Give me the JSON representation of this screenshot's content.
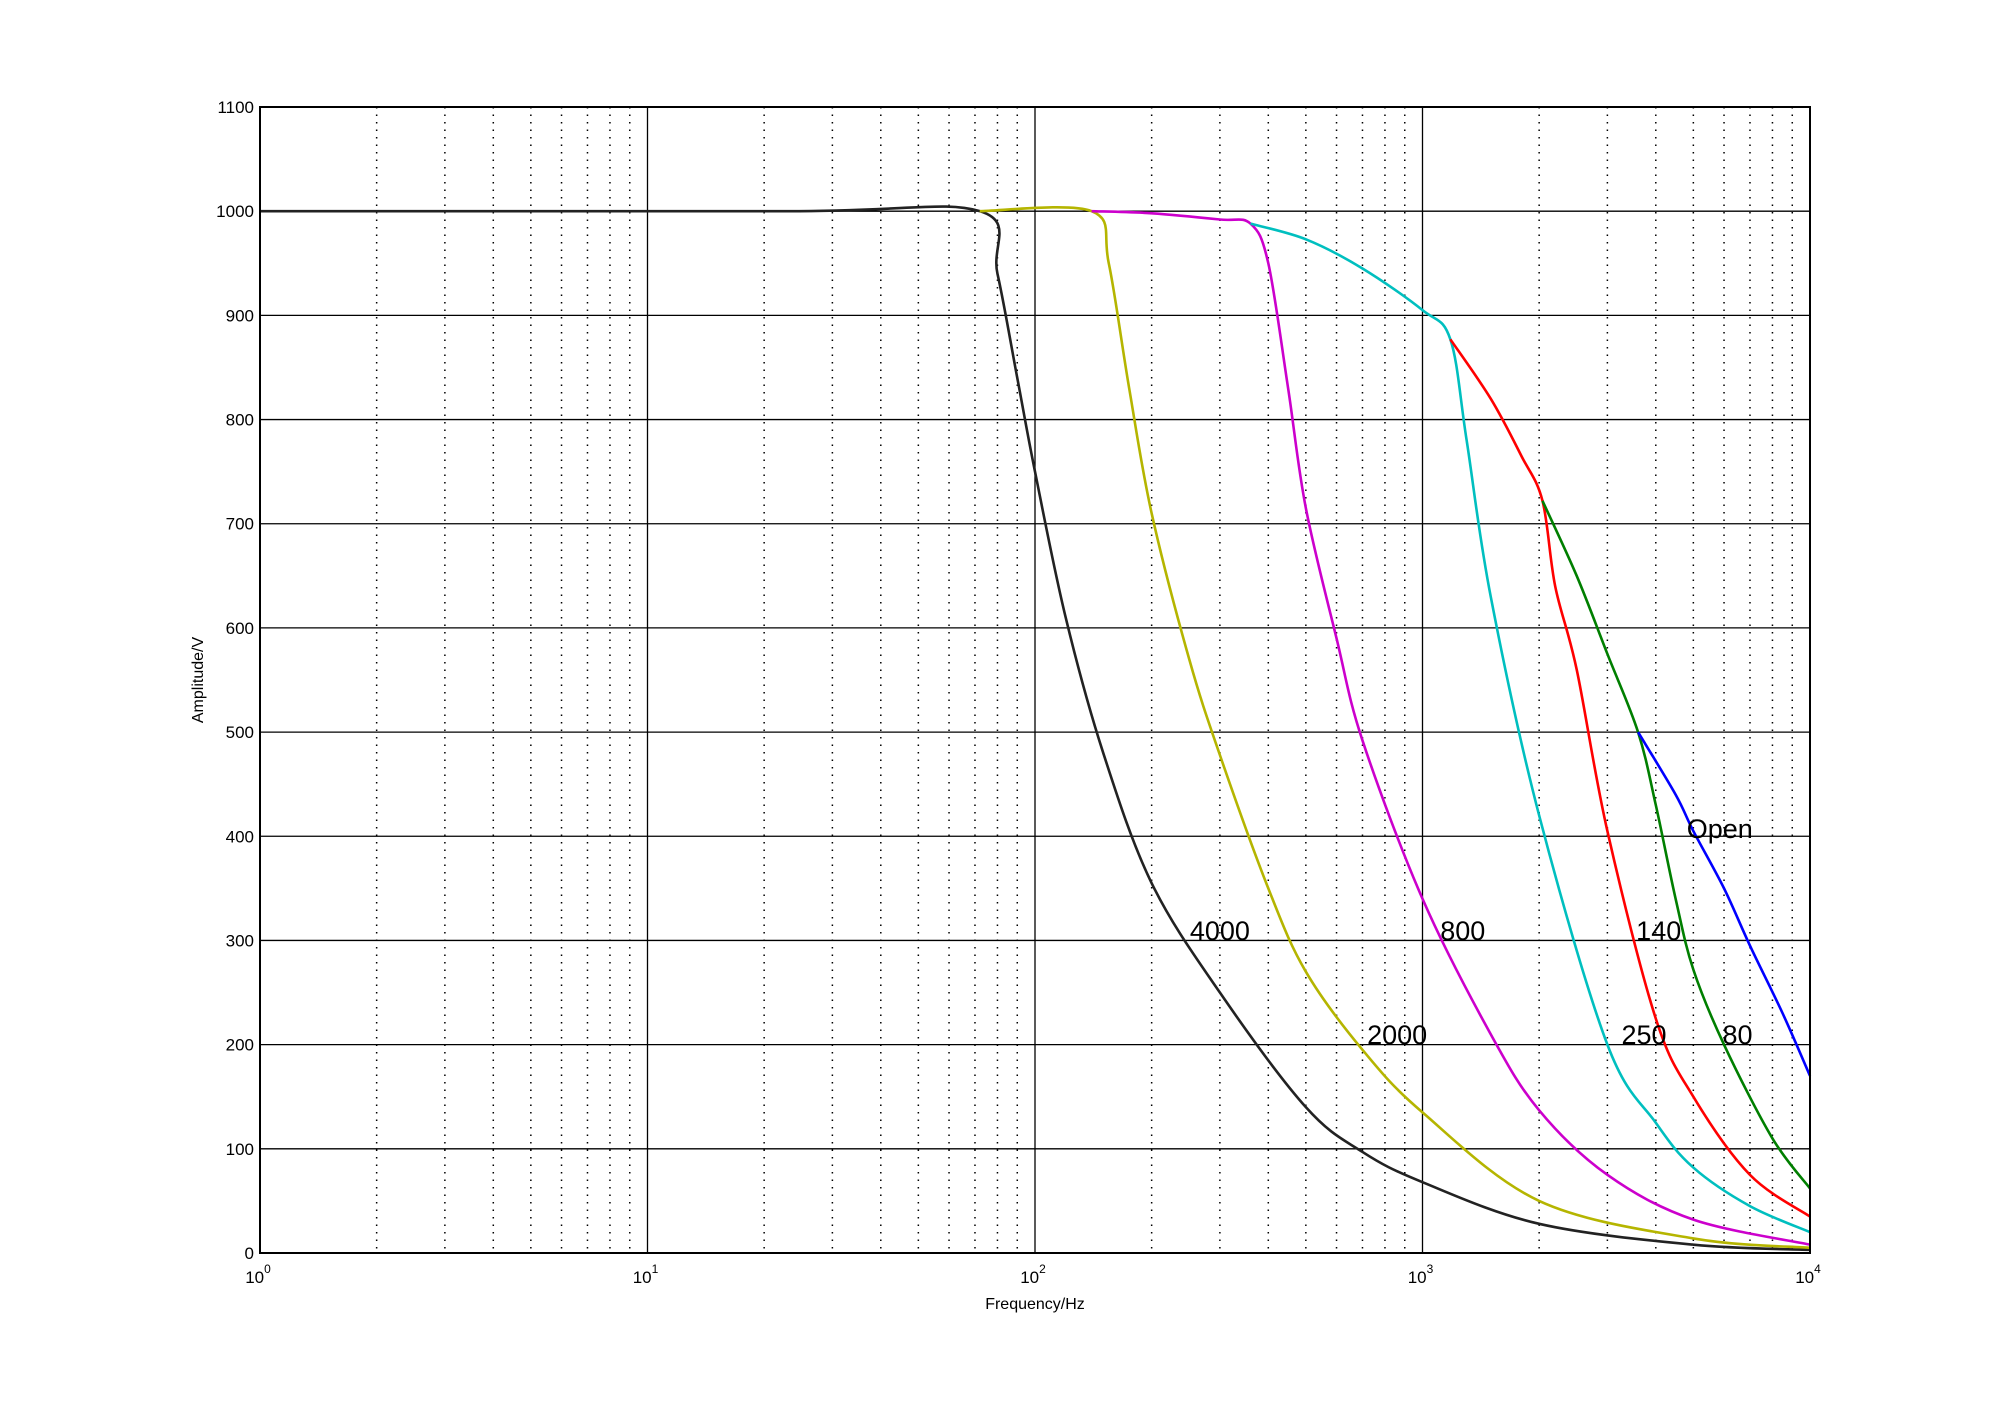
{
  "chart_data": {
    "type": "line",
    "title": "",
    "xlabel": "Frequency/Hz",
    "ylabel": "Amplitude/V",
    "xscale": "log",
    "xlim": [
      1,
      10000
    ],
    "ylim": [
      0,
      1100
    ],
    "grid": {
      "major": true,
      "minor_x": "dotted"
    },
    "xticks": [
      {
        "value": 1,
        "base": "10",
        "exp": "0"
      },
      {
        "value": 10,
        "base": "10",
        "exp": "1"
      },
      {
        "value": 100,
        "base": "10",
        "exp": "2"
      },
      {
        "value": 1000,
        "base": "10",
        "exp": "3"
      },
      {
        "value": 10000,
        "base": "10",
        "exp": "4"
      }
    ],
    "yticks": [
      "0",
      "100",
      "200",
      "300",
      "400",
      "500",
      "600",
      "700",
      "800",
      "900",
      "1000",
      "1100"
    ],
    "series": [
      {
        "name": "4000",
        "color": "#222222",
        "points": [
          [
            1,
            1000
          ],
          [
            23,
            1000
          ],
          [
            72,
            1000
          ],
          [
            80,
            940
          ],
          [
            90,
            840
          ],
          [
            100,
            750
          ],
          [
            120,
            610
          ],
          [
            150,
            480
          ],
          [
            200,
            355
          ],
          [
            300,
            250
          ],
          [
            500,
            140
          ],
          [
            700,
            97
          ],
          [
            1000,
            68
          ],
          [
            2000,
            28
          ],
          [
            5000,
            8
          ],
          [
            10000,
            3
          ]
        ]
      },
      {
        "name": "2000",
        "color": "#b5b500",
        "points": [
          [
            72,
            1000
          ],
          [
            140,
            1000
          ],
          [
            155,
            950
          ],
          [
            175,
            830
          ],
          [
            200,
            710
          ],
          [
            250,
            570
          ],
          [
            300,
            478
          ],
          [
            400,
            350
          ],
          [
            500,
            270
          ],
          [
            700,
            195
          ],
          [
            1000,
            135
          ],
          [
            2000,
            50
          ],
          [
            5000,
            14
          ],
          [
            10000,
            5
          ]
        ]
      },
      {
        "name": "800",
        "color": "#cc00cc",
        "points": [
          [
            140,
            1000
          ],
          [
            200,
            998
          ],
          [
            300,
            992
          ],
          [
            360,
            988
          ],
          [
            400,
            950
          ],
          [
            450,
            830
          ],
          [
            500,
            715
          ],
          [
            600,
            590
          ],
          [
            700,
            492
          ],
          [
            1000,
            340
          ],
          [
            1500,
            210
          ],
          [
            2000,
            137
          ],
          [
            3000,
            75
          ],
          [
            5000,
            32
          ],
          [
            10000,
            8
          ]
        ]
      },
      {
        "name": "250",
        "color": "#00bfbf",
        "points": [
          [
            360,
            988
          ],
          [
            500,
            973
          ],
          [
            700,
            945
          ],
          [
            1000,
            905
          ],
          [
            1180,
            877
          ],
          [
            1300,
            780
          ],
          [
            1500,
            630
          ],
          [
            2000,
            420
          ],
          [
            3000,
            200
          ],
          [
            4000,
            125
          ],
          [
            5000,
            82
          ],
          [
            7000,
            45
          ],
          [
            10000,
            20
          ]
        ]
      },
      {
        "name": "140",
        "color": "#ff0000",
        "points": [
          [
            1180,
            877
          ],
          [
            1500,
            820
          ],
          [
            1800,
            765
          ],
          [
            2040,
            722
          ],
          [
            2200,
            640
          ],
          [
            2500,
            560
          ],
          [
            3000,
            405
          ],
          [
            4000,
            225
          ],
          [
            5000,
            150
          ],
          [
            7000,
            75
          ],
          [
            10000,
            35
          ]
        ]
      },
      {
        "name": "80",
        "color": "#007f00",
        "points": [
          [
            2040,
            722
          ],
          [
            2500,
            650
          ],
          [
            3000,
            575
          ],
          [
            3600,
            500
          ],
          [
            4000,
            430
          ],
          [
            4500,
            340
          ],
          [
            5000,
            272
          ],
          [
            6000,
            200
          ],
          [
            8000,
            110
          ],
          [
            10000,
            62
          ]
        ]
      },
      {
        "name": "Open",
        "color": "#0000ff",
        "points": [
          [
            3600,
            500
          ],
          [
            4500,
            440
          ],
          [
            5000,
            405
          ],
          [
            6000,
            350
          ],
          [
            7000,
            295
          ],
          [
            8500,
            230
          ],
          [
            10000,
            170
          ]
        ]
      }
    ],
    "annotations": [
      {
        "text": "4000",
        "x": 300,
        "y": 310
      },
      {
        "text": "2000",
        "x": 860,
        "y": 210
      },
      {
        "text": "800",
        "x": 1270,
        "y": 310
      },
      {
        "text": "140",
        "x": 4070,
        "y": 310
      },
      {
        "text": "250",
        "x": 3730,
        "y": 210
      },
      {
        "text": "80",
        "x": 6500,
        "y": 210
      },
      {
        "text": "Open",
        "x": 5850,
        "y": 408
      }
    ]
  }
}
